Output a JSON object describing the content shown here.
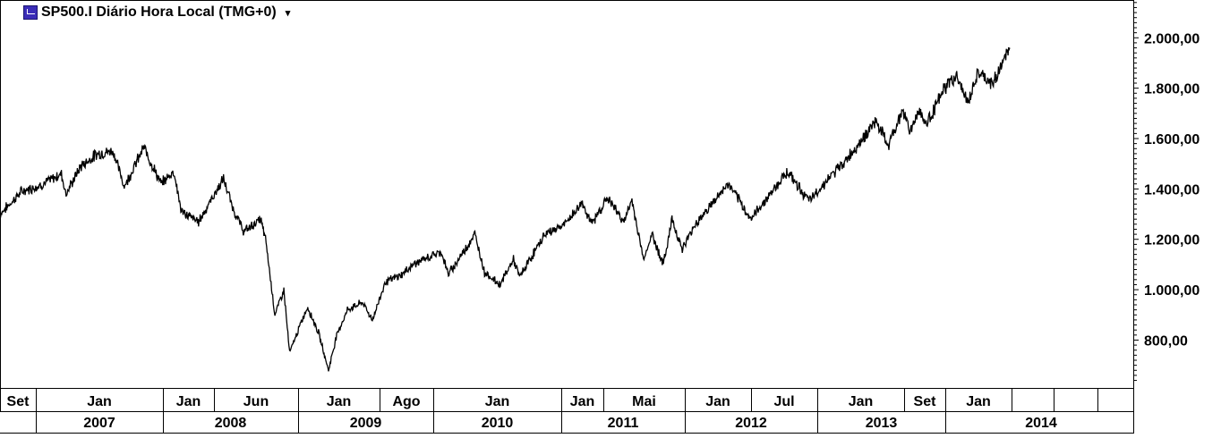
{
  "chart": {
    "title": "SP500.I Diário Hora Local (TMG+0)",
    "icon": "cfd-symbol-icon",
    "dropdown_icon": "chevron-down-icon",
    "line_color": "#000000"
  },
  "chart_data": {
    "type": "line",
    "title": "SP500.I Diário Hora Local (TMG+0)",
    "xlabel": "",
    "ylabel": "",
    "ylim": [
      610,
      2150
    ],
    "y_ticks": [
      "2.000,00",
      "1.800,00",
      "1.600,00",
      "1.400,00",
      "1.200,00",
      "1.000,00",
      "800,00"
    ],
    "y_tick_values": [
      2000,
      1800,
      1600,
      1400,
      1200,
      1000,
      800
    ],
    "grid": false,
    "legend": "none",
    "x_range": [
      "2006-09-01",
      "2014-08-01"
    ],
    "x_tick_labels_top": [
      "Set",
      "Jan",
      "Jan",
      "Jun",
      "Jan",
      "Ago",
      "Jan",
      "Jan",
      "Mai",
      "Jan",
      "Jul",
      "Jan",
      "Set",
      "Jan"
    ],
    "x_tick_labels_years": [
      "2007",
      "2008",
      "2009",
      "2010",
      "2011",
      "2012",
      "2013",
      "2014"
    ],
    "series": [
      {
        "x": [
          "2006-09-01",
          "2006-11-01",
          "2007-01-01",
          "2007-02-20",
          "2007-03-05",
          "2007-04-15",
          "2007-06-01",
          "2007-07-15",
          "2007-08-15",
          "2007-10-09",
          "2007-11-26",
          "2008-01-01",
          "2008-01-22",
          "2008-03-10",
          "2008-05-19",
          "2008-06-15",
          "2008-07-15",
          "2008-08-31",
          "2008-09-15",
          "2008-10-10",
          "2008-11-04",
          "2008-11-20",
          "2008-12-31",
          "2009-01-10",
          "2009-02-09",
          "2009-03-09",
          "2009-04-01",
          "2009-05-01",
          "2009-06-12",
          "2009-07-10",
          "2009-08-15",
          "2009-10-01",
          "2009-11-01",
          "2010-01-01",
          "2010-01-19",
          "2010-02-08",
          "2010-04-23",
          "2010-05-20",
          "2010-07-02",
          "2010-08-09",
          "2010-08-26",
          "2010-11-05",
          "2010-12-31",
          "2011-02-18",
          "2011-03-16",
          "2011-04-29",
          "2011-06-15",
          "2011-07-07",
          "2011-08-08",
          "2011-09-01",
          "2011-10-03",
          "2011-10-27",
          "2011-11-25",
          "2011-12-31",
          "2012-04-02",
          "2012-06-04",
          "2012-09-14",
          "2012-11-15",
          "2012-12-31",
          "2013-03-01",
          "2013-05-21",
          "2013-06-24",
          "2013-08-02",
          "2013-08-27",
          "2013-09-18",
          "2013-10-08",
          "2013-11-29",
          "2013-12-31",
          "2014-02-03",
          "2014-03-01",
          "2014-04-11",
          "2014-05-30"
        ],
        "values": [
          1300,
          1390,
          1420,
          1460,
          1380,
          1490,
          1540,
          1550,
          1410,
          1565,
          1420,
          1470,
          1310,
          1270,
          1440,
          1320,
          1230,
          1280,
          1190,
          900,
          1000,
          750,
          900,
          930,
          830,
          680,
          820,
          920,
          950,
          880,
          1030,
          1060,
          1100,
          1140,
          1150,
          1060,
          1220,
          1070,
          1020,
          1120,
          1050,
          1220,
          1260,
          1345,
          1260,
          1365,
          1270,
          1355,
          1120,
          1220,
          1100,
          1280,
          1160,
          1260,
          1420,
          1280,
          1470,
          1350,
          1430,
          1520,
          1670,
          1570,
          1710,
          1630,
          1720,
          1655,
          1800,
          1850,
          1740,
          1860,
          1815,
          1960
        ]
      }
    ]
  }
}
